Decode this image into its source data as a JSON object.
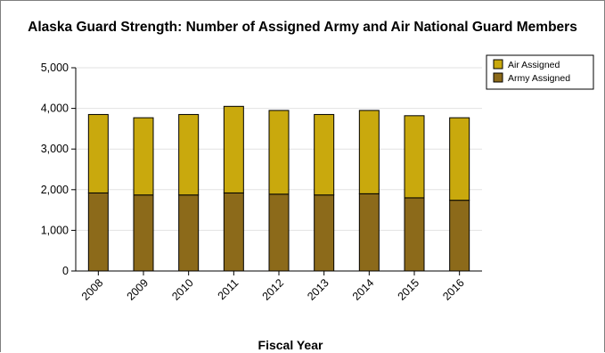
{
  "chart_data": {
    "type": "bar",
    "stacked": true,
    "title": "Alaska Guard Strength: Number of Assigned Army and Air National Guard Members",
    "xlabel": "Fiscal Year",
    "ylabel": "",
    "categories": [
      "2008",
      "2009",
      "2010",
      "2011",
      "2012",
      "2013",
      "2014",
      "2015",
      "2016"
    ],
    "series": [
      {
        "name": "Army Assigned",
        "color": "#8c6a1a",
        "values": [
          1920,
          1870,
          1870,
          1920,
          1890,
          1870,
          1900,
          1800,
          1740
        ]
      },
      {
        "name": "Air Assigned",
        "color": "#c9a90d",
        "values": [
          1930,
          1900,
          1980,
          2130,
          2060,
          1980,
          2050,
          2020,
          2030
        ]
      }
    ],
    "yticks": [
      "0",
      "1,000",
      "2,000",
      "3,000",
      "4,000",
      "5,000"
    ],
    "ylim": [
      0,
      5000
    ],
    "grid": true,
    "legend": {
      "placement": "top-right",
      "entries": [
        "Air Assigned",
        "Army Assigned"
      ]
    }
  }
}
